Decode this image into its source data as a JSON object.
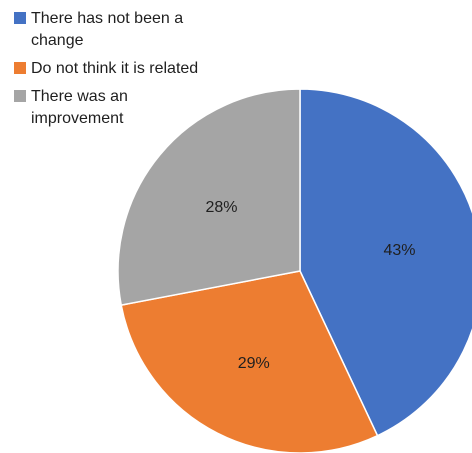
{
  "chart_data": {
    "type": "pie",
    "legend_position": "top-left",
    "series": [
      {
        "label": "There has not been a change",
        "value": 43,
        "display": "43%",
        "color": "#4472C4"
      },
      {
        "label": "Do not think it is related",
        "value": 29,
        "display": "29%",
        "color": "#ED7D31"
      },
      {
        "label": "There was an improvement",
        "value": 28,
        "display": "28%",
        "color": "#A5A5A5"
      }
    ]
  }
}
